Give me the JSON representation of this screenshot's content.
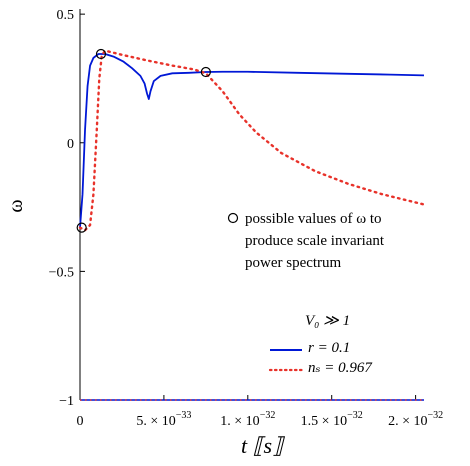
{
  "chart_data": {
    "type": "line",
    "x_range": [
      0,
      2.05e-32
    ],
    "y_range": [
      -1,
      0.52
    ],
    "x_ticks": [
      {
        "value": 0,
        "mant": "0",
        "exp": ""
      },
      {
        "value": 5e-33,
        "mant": "5. × 10",
        "exp": "−33"
      },
      {
        "value": 1e-32,
        "mant": "1. × 10",
        "exp": "−32"
      },
      {
        "value": 1.5e-32,
        "mant": "1.5 × 10",
        "exp": "−32"
      },
      {
        "value": 2e-32,
        "mant": "2. × 10",
        "exp": "−32"
      }
    ],
    "y_ticks": [
      {
        "value": 0.5,
        "label": "0.5"
      },
      {
        "value": 0,
        "label": "0"
      },
      {
        "value": -0.5,
        "label": "−0.5"
      },
      {
        "value": -1,
        "label": "−1"
      }
    ],
    "ylabel": "ω",
    "xlabel": "t ⟦s⟧",
    "legend_title": "V₀ ≫ 1",
    "annotation": {
      "lines": [
        "possible values of  ω to",
        "produce scale invariant",
        "power spectrum"
      ]
    },
    "series": [
      {
        "name": "r = 0.1",
        "color": "#0018d6",
        "style": "solid",
        "points": [
          [
            0,
            -0.33
          ],
          [
            1.5e-34,
            -0.2
          ],
          [
            3e-34,
            0.05
          ],
          [
            4.5e-34,
            0.22
          ],
          [
            6e-34,
            0.3
          ],
          [
            8e-34,
            0.33
          ],
          [
            1.1e-33,
            0.345
          ],
          [
            1.5e-33,
            0.345
          ],
          [
            2e-33,
            0.335
          ],
          [
            2.6e-33,
            0.315
          ],
          [
            3.1e-33,
            0.29
          ],
          [
            3.6e-33,
            0.26
          ],
          [
            3.85e-33,
            0.23
          ],
          [
            4e-33,
            0.19
          ],
          [
            4.1e-33,
            0.17
          ],
          [
            4.2e-33,
            0.2
          ],
          [
            4.4e-33,
            0.24
          ],
          [
            4.8e-33,
            0.26
          ],
          [
            5.5e-33,
            0.27
          ],
          [
            6.5e-33,
            0.272
          ],
          [
            7.5e-33,
            0.275
          ],
          [
            8.5e-33,
            0.276
          ],
          [
            1e-32,
            0.276
          ],
          [
            1.3e-32,
            0.272
          ],
          [
            1.6e-32,
            0.268
          ],
          [
            1.85e-32,
            0.265
          ],
          [
            2.05e-32,
            0.262
          ]
        ]
      },
      {
        "name": "nₛ = 0.967",
        "color": "#e8322a",
        "style": "dotted",
        "points": [
          [
            0,
            -0.33
          ],
          [
            3e-34,
            -0.34
          ],
          [
            6e-34,
            -0.32
          ],
          [
            8e-34,
            -0.2
          ],
          [
            1e-33,
            0.05
          ],
          [
            1.15e-33,
            0.25
          ],
          [
            1.3e-33,
            0.34
          ],
          [
            1.5e-33,
            0.358
          ],
          [
            2.5e-33,
            0.342
          ],
          [
            4e-33,
            0.32
          ],
          [
            5.5e-33,
            0.3
          ],
          [
            6.8e-33,
            0.285
          ],
          [
            7.5e-33,
            0.27
          ],
          [
            8.5e-33,
            0.2
          ],
          [
            9.5e-33,
            0.11
          ],
          [
            1.05e-32,
            0.04
          ],
          [
            1.2e-32,
            -0.04
          ],
          [
            1.4e-32,
            -0.11
          ],
          [
            1.6e-32,
            -0.16
          ],
          [
            1.8e-32,
            -0.2
          ],
          [
            2.05e-32,
            -0.24
          ]
        ]
      }
    ],
    "reference_line": {
      "y": -1,
      "colors": [
        "#0018d6",
        "#e8322a"
      ]
    },
    "markers": [
      {
        "x": 1e-34,
        "y": -0.33
      },
      {
        "x": 1.25e-33,
        "y": 0.345
      },
      {
        "x": 7.5e-33,
        "y": 0.275
      }
    ]
  }
}
